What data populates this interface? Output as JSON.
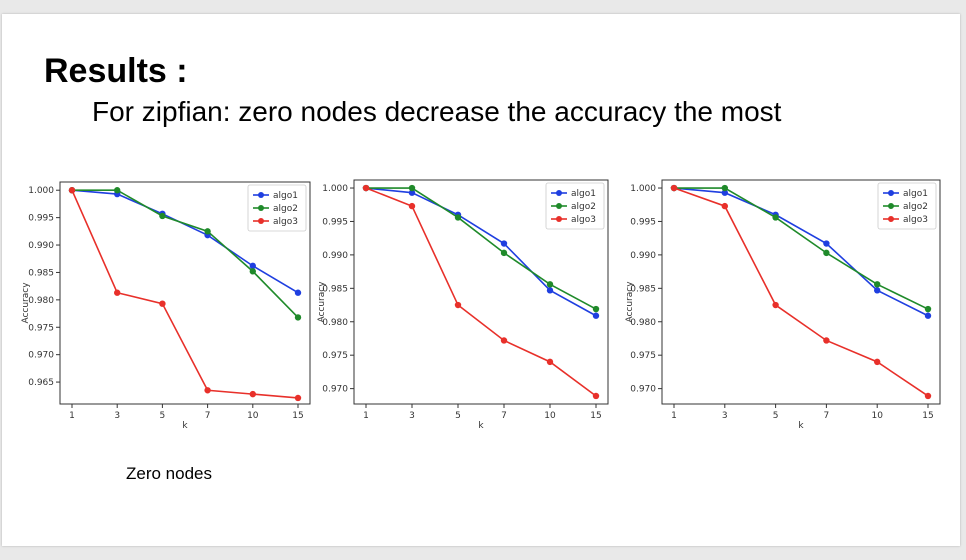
{
  "slide": {
    "title": "Results :",
    "subtitle": "For zipfian: zero nodes decrease the accuracy the most",
    "caption": "Zero nodes"
  },
  "colors": {
    "algo1": "#1f3fe0",
    "algo2": "#1f8a2a",
    "algo3": "#e8302a"
  },
  "chart_data": [
    {
      "type": "line",
      "x": [
        1,
        3,
        5,
        7,
        10,
        15
      ],
      "xticks": [
        "1",
        "3",
        "5",
        "7",
        "10",
        "15"
      ],
      "xlabel": "k",
      "ylabel": "Accuracy",
      "ylim": [
        0.961,
        1.0015
      ],
      "yticks": [
        0.965,
        0.97,
        0.975,
        0.98,
        0.985,
        0.99,
        0.995,
        1.0
      ],
      "legend": "top-right",
      "grid": false,
      "series": [
        {
          "name": "algo1",
          "color": "#1f3fe0",
          "values": [
            1.0,
            0.9993,
            0.9957,
            0.9918,
            0.9862,
            0.9813
          ]
        },
        {
          "name": "algo2",
          "color": "#1f8a2a",
          "values": [
            1.0,
            1.0,
            0.9953,
            0.9925,
            0.9852,
            0.9768
          ]
        },
        {
          "name": "algo3",
          "color": "#e8302a",
          "values": [
            1.0,
            0.9813,
            0.9793,
            0.9635,
            0.9628,
            0.9621
          ]
        }
      ]
    },
    {
      "type": "line",
      "x": [
        1,
        3,
        5,
        7,
        10,
        15
      ],
      "xticks": [
        "1",
        "3",
        "5",
        "7",
        "10",
        "15"
      ],
      "xlabel": "k",
      "ylabel": "Accuracy",
      "ylim": [
        0.9677,
        1.0012
      ],
      "yticks": [
        0.97,
        0.975,
        0.98,
        0.985,
        0.99,
        0.995,
        1.0
      ],
      "legend": "top-right",
      "grid": false,
      "series": [
        {
          "name": "algo1",
          "color": "#1f3fe0",
          "values": [
            1.0,
            0.9993,
            0.996,
            0.9917,
            0.9847,
            0.9809
          ]
        },
        {
          "name": "algo2",
          "color": "#1f8a2a",
          "values": [
            1.0,
            1.0,
            0.9956,
            0.9903,
            0.9856,
            0.9819
          ]
        },
        {
          "name": "algo3",
          "color": "#e8302a",
          "values": [
            1.0,
            0.9973,
            0.9825,
            0.9772,
            0.974,
            0.9689
          ]
        }
      ]
    },
    {
      "type": "line",
      "x": [
        1,
        3,
        5,
        7,
        10,
        15
      ],
      "xticks": [
        "1",
        "3",
        "5",
        "7",
        "10",
        "15"
      ],
      "xlabel": "k",
      "ylabel": "Accuracy",
      "ylim": [
        0.9677,
        1.0012
      ],
      "yticks": [
        0.97,
        0.975,
        0.98,
        0.985,
        0.99,
        0.995,
        1.0
      ],
      "legend": "top-right",
      "grid": false,
      "series": [
        {
          "name": "algo1",
          "color": "#1f3fe0",
          "values": [
            1.0,
            0.9993,
            0.996,
            0.9917,
            0.9847,
            0.9809
          ]
        },
        {
          "name": "algo2",
          "color": "#1f8a2a",
          "values": [
            1.0,
            1.0,
            0.9956,
            0.9903,
            0.9856,
            0.9819
          ]
        },
        {
          "name": "algo3",
          "color": "#e8302a",
          "values": [
            1.0,
            0.9973,
            0.9825,
            0.9772,
            0.974,
            0.9689
          ]
        }
      ]
    }
  ]
}
